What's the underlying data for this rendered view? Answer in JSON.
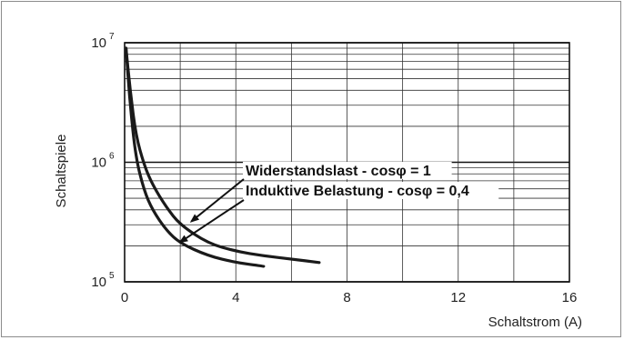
{
  "chart_data": {
    "type": "line",
    "xlabel": "Schaltstrom (A)",
    "ylabel": "Schaltspiele",
    "xlim": [
      0,
      16
    ],
    "ylim": [
      100000,
      10000000
    ],
    "y_scale": "log",
    "grid": true,
    "x_ticks": [
      "0",
      "4",
      "8",
      "12",
      "16"
    ],
    "y_ticks": [
      {
        "value": 100000,
        "base": "10",
        "exp": "5"
      },
      {
        "value": 1000000,
        "base": "10",
        "exp": "6"
      },
      {
        "value": 10000000,
        "base": "10",
        "exp": "7"
      }
    ],
    "series": [
      {
        "name": "Widerstandslast - cosφ = 1",
        "x": [
          0.05,
          0.2,
          0.4,
          0.7,
          1.0,
          1.5,
          2.0,
          3.0,
          4.0,
          5.0,
          6.0,
          7.0
        ],
        "y": [
          9000000,
          4000000,
          1700000,
          950000,
          650000,
          420000,
          300000,
          210000,
          180000,
          165000,
          155000,
          145000
        ]
      },
      {
        "name": "Induktive Belastung - cosφ = 0,4",
        "x": [
          0.05,
          0.2,
          0.4,
          0.7,
          1.0,
          1.5,
          2.0,
          3.0,
          4.0,
          5.0
        ],
        "y": [
          9000000,
          3000000,
          1100000,
          580000,
          400000,
          270000,
          210000,
          165000,
          145000,
          135000
        ]
      }
    ],
    "annotations": [
      {
        "text": "Widerstandslast - cosφ = 1",
        "points_to_x": 2.4,
        "points_to_y": 320000
      },
      {
        "text": "Induktive Belastung - cosφ = 0,4",
        "points_to_x": 2.0,
        "points_to_y": 215000
      }
    ]
  }
}
